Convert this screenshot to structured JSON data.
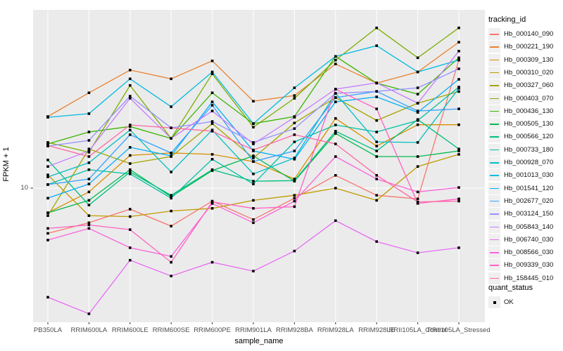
{
  "axes": {
    "x_title": "sample_name",
    "y_title": "FPKM + 1",
    "y_tick_label": "10"
  },
  "legend": {
    "tracking_title": "tracking_id",
    "quant_title": "quant_status",
    "quant_ok_label": "OK"
  },
  "chart_data": {
    "type": "line",
    "xlabel": "sample_name",
    "ylabel": "FPKM + 1",
    "y_scale": "log10",
    "y_ticks": [
      10
    ],
    "ylim_approx": [
      1.1,
      160
    ],
    "grid": "white-on-gray",
    "panel_bg": "#EBEBEB",
    "grid_color": "#FFFFFF",
    "point_shape": "black-square",
    "legend_position": "right",
    "categories": [
      "PB350LA",
      "RRIM600LA",
      "RRIM600LE",
      "RRIM600SE",
      "RRIM600PE",
      "RRIM901LA",
      "RRIM928BA",
      "RRIM928LA",
      "RRIM928LE",
      "RRII105LA_Control",
      "RRII105LA_Stressed"
    ],
    "series": [
      {
        "name": "Hb_000140_090",
        "color": "#F8766D",
        "values": [
          4.8,
          5.7,
          7.1,
          5.4,
          8.1,
          6.0,
          8.5,
          12.3,
          8.9,
          8.4,
          80
        ]
      },
      {
        "name": "Hb_000221_190",
        "color": "#EA8331",
        "values": [
          32,
          47,
          68,
          59,
          79,
          41,
          45,
          75,
          55,
          66,
          107
        ]
      },
      {
        "name": "Hb_000309_130",
        "color": "#D89000",
        "values": [
          6.7,
          9.4,
          17,
          17.7,
          17.3,
          15.4,
          11.6,
          31,
          19.8,
          28,
          28
        ]
      },
      {
        "name": "Hb_000310_020",
        "color": "#C09B00",
        "values": [
          12.4,
          6.4,
          6.3,
          6.9,
          7.2,
          8.2,
          8.9,
          10,
          8.2,
          14.2,
          17.3
        ]
      },
      {
        "name": "Hb_000327_060",
        "color": "#A3A500",
        "values": [
          6.4,
          18.9,
          14.9,
          16.7,
          28.5,
          16.3,
          28.8,
          43.5,
          30,
          39.7,
          48
        ]
      },
      {
        "name": "Hb_000403_070",
        "color": "#7CAE00",
        "values": [
          21,
          17.9,
          53,
          22.4,
          64,
          26.9,
          43,
          80,
          135,
          83,
          135
        ]
      },
      {
        "name": "Hb_000436_130",
        "color": "#39B600",
        "values": [
          20.5,
          24.9,
          27.2,
          22.4,
          47,
          28.5,
          32,
          85,
          55,
          46,
          83
        ]
      },
      {
        "name": "Hb_000505_130",
        "color": "#00BB4E",
        "values": [
          6.7,
          8.2,
          13.5,
          8.7,
          13.3,
          16.9,
          11.2,
          24.3,
          16.7,
          16.7,
          18.3
        ]
      },
      {
        "name": "Hb_000566_120",
        "color": "#00BF7D",
        "values": [
          15.8,
          7.6,
          13,
          8.9,
          13.5,
          11.2,
          11.3,
          25.2,
          18.3,
          30.5,
          18.9
        ]
      },
      {
        "name": "Hb_000733_180",
        "color": "#00C1A3",
        "values": [
          10.6,
          13.5,
          12.6,
          8.5,
          16,
          10.7,
          21.2,
          27.9,
          24.9,
          30,
          51.6
        ]
      },
      {
        "name": "Hb_000928_070",
        "color": "#00BFC4",
        "values": [
          12,
          15.1,
          25.7,
          13,
          25.7,
          12.6,
          16.3,
          46.6,
          21.2,
          21,
          50.5
        ]
      },
      {
        "name": "Hb_001013_030",
        "color": "#00BAE0",
        "values": [
          31.6,
          33.5,
          59,
          37.5,
          66,
          28.5,
          51,
          85,
          101,
          66,
          80
        ]
      },
      {
        "name": "Hb_001541_120",
        "color": "#00B0F6",
        "values": [
          8.5,
          10.7,
          19.4,
          16.9,
          40.6,
          18.3,
          16,
          40.6,
          44,
          34.2,
          58.5
        ]
      },
      {
        "name": "Hb_002677_020",
        "color": "#35A2FF",
        "values": [
          10.6,
          11.6,
          23.8,
          17.7,
          38.4,
          15.4,
          18.3,
          43.5,
          48.1,
          35,
          36.2
        ]
      },
      {
        "name": "Hb_003124_150",
        "color": "#9590FF",
        "values": [
          19.8,
          21.7,
          44.5,
          26.6,
          29.5,
          21,
          26.3,
          46.6,
          48.1,
          51,
          69.4
        ]
      },
      {
        "name": "Hb_005843_140",
        "color": "#C77CFF",
        "values": [
          14.2,
          18.3,
          43,
          22.4,
          35,
          20.5,
          31.6,
          49.9,
          55.3,
          39.7,
          92.5
        ]
      },
      {
        "name": "Hb_006740_030",
        "color": "#E76BF3",
        "values": [
          1.7,
          1.3,
          3.1,
          2.4,
          3.0,
          2.6,
          3.6,
          5.9,
          4.2,
          3.5,
          3.8
        ]
      },
      {
        "name": "Hb_008566_030",
        "color": "#FA62DB",
        "values": [
          4.3,
          5.2,
          3.8,
          3.3,
          7.8,
          5.7,
          8.1,
          16.7,
          11.6,
          9.4,
          10.1
        ]
      },
      {
        "name": "Hb_009339_030",
        "color": "#FF61C3",
        "values": [
          5.2,
          5.5,
          5.1,
          3.0,
          8.0,
          7.2,
          7.4,
          49.9,
          36.2,
          7.8,
          8.4
        ]
      },
      {
        "name": "Hb_158445_010",
        "color": "#FF67A4",
        "values": [
          20,
          16.7,
          27.9,
          26.6,
          25.2,
          18.6,
          23.8,
          20.5,
          12.3,
          8.0,
          8.1
        ]
      }
    ],
    "quant_status_items": [
      "OK"
    ]
  }
}
